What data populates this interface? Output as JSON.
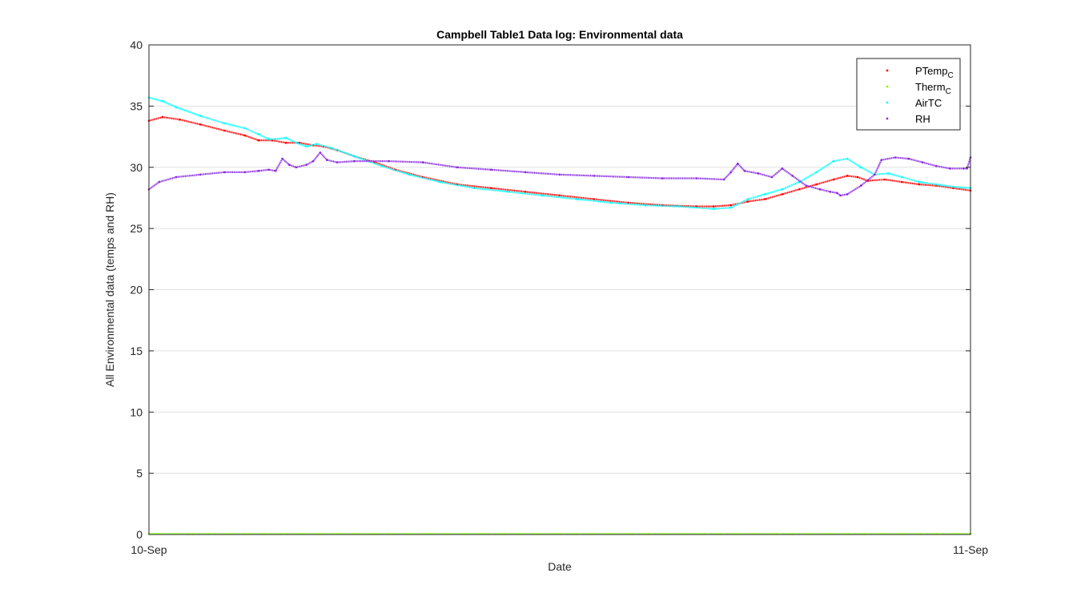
{
  "chart_data": {
    "type": "scatter",
    "title": "Campbell Table1 Data log: Environmental data",
    "xlabel": "Date",
    "ylabel": "All Environmental data (temps and RH)",
    "x_ticks": [
      "10-Sep",
      "11-Sep"
    ],
    "xlim": [
      0,
      24
    ],
    "ylim": [
      0,
      40
    ],
    "y_ticks": [
      0,
      5,
      10,
      15,
      20,
      25,
      30,
      35,
      40
    ],
    "grid": true,
    "legend_position": "top-right",
    "series": [
      {
        "name": "PTemp",
        "subscript": "C",
        "color": "#ff0000",
        "points": [
          [
            0,
            33.8
          ],
          [
            0.4,
            34.1
          ],
          [
            0.9,
            33.9
          ],
          [
            1.5,
            33.5
          ],
          [
            2.2,
            33.0
          ],
          [
            2.8,
            32.6
          ],
          [
            3.2,
            32.2
          ],
          [
            3.6,
            32.2
          ],
          [
            4.0,
            32.0
          ],
          [
            4.4,
            32.0
          ],
          [
            4.8,
            31.8
          ],
          [
            5.1,
            31.7
          ],
          [
            5.5,
            31.4
          ],
          [
            6.0,
            30.9
          ],
          [
            6.6,
            30.4
          ],
          [
            7.2,
            29.8
          ],
          [
            8.0,
            29.2
          ],
          [
            9.0,
            28.6
          ],
          [
            10.0,
            28.3
          ],
          [
            11.0,
            28.0
          ],
          [
            12.0,
            27.7
          ],
          [
            13.0,
            27.4
          ],
          [
            14.0,
            27.1
          ],
          [
            15.0,
            26.9
          ],
          [
            16.0,
            26.8
          ],
          [
            16.5,
            26.8
          ],
          [
            17.0,
            26.9
          ],
          [
            17.5,
            27.2
          ],
          [
            18.0,
            27.4
          ],
          [
            18.5,
            27.8
          ],
          [
            19.0,
            28.2
          ],
          [
            19.5,
            28.6
          ],
          [
            20.0,
            29.0
          ],
          [
            20.4,
            29.3
          ],
          [
            20.7,
            29.2
          ],
          [
            21.0,
            28.9
          ],
          [
            21.5,
            29.0
          ],
          [
            22.0,
            28.8
          ],
          [
            22.5,
            28.6
          ],
          [
            23.0,
            28.5
          ],
          [
            23.5,
            28.3
          ],
          [
            24.0,
            28.1
          ]
        ]
      },
      {
        "name": "Therm",
        "subscript": "C",
        "color": "#7fff00",
        "points": [
          [
            0,
            0.05
          ],
          [
            24,
            0.05
          ]
        ]
      },
      {
        "name": "AirTC",
        "subscript": "",
        "color": "#00ffff",
        "points": [
          [
            0,
            35.7
          ],
          [
            0.4,
            35.4
          ],
          [
            0.8,
            34.9
          ],
          [
            1.5,
            34.2
          ],
          [
            2.2,
            33.6
          ],
          [
            2.8,
            33.2
          ],
          [
            3.2,
            32.7
          ],
          [
            3.5,
            32.3
          ],
          [
            3.7,
            32.3
          ],
          [
            4.0,
            32.4
          ],
          [
            4.3,
            32.0
          ],
          [
            4.6,
            31.7
          ],
          [
            4.9,
            31.9
          ],
          [
            5.3,
            31.6
          ],
          [
            6.0,
            30.9
          ],
          [
            6.8,
            30.1
          ],
          [
            7.6,
            29.4
          ],
          [
            8.5,
            28.8
          ],
          [
            9.5,
            28.3
          ],
          [
            10.5,
            28.0
          ],
          [
            11.5,
            27.7
          ],
          [
            12.5,
            27.4
          ],
          [
            13.5,
            27.1
          ],
          [
            14.5,
            26.9
          ],
          [
            15.5,
            26.8
          ],
          [
            16.5,
            26.6
          ],
          [
            17.0,
            26.7
          ],
          [
            17.5,
            27.4
          ],
          [
            18.0,
            27.8
          ],
          [
            18.5,
            28.2
          ],
          [
            19.0,
            28.8
          ],
          [
            19.5,
            29.6
          ],
          [
            20.0,
            30.5
          ],
          [
            20.4,
            30.7
          ],
          [
            20.8,
            30.0
          ],
          [
            21.2,
            29.4
          ],
          [
            21.6,
            29.5
          ],
          [
            22.0,
            29.2
          ],
          [
            22.5,
            28.8
          ],
          [
            23.0,
            28.6
          ],
          [
            23.5,
            28.4
          ],
          [
            24.0,
            28.3
          ]
        ]
      },
      {
        "name": "RH",
        "subscript": "",
        "color": "#8a2be2",
        "points": [
          [
            0,
            28.2
          ],
          [
            0.3,
            28.8
          ],
          [
            0.8,
            29.2
          ],
          [
            1.5,
            29.4
          ],
          [
            2.2,
            29.6
          ],
          [
            2.8,
            29.6
          ],
          [
            3.2,
            29.7
          ],
          [
            3.5,
            29.8
          ],
          [
            3.7,
            29.7
          ],
          [
            3.9,
            30.7
          ],
          [
            4.1,
            30.2
          ],
          [
            4.3,
            30.0
          ],
          [
            4.6,
            30.2
          ],
          [
            4.8,
            30.5
          ],
          [
            5.0,
            31.2
          ],
          [
            5.2,
            30.6
          ],
          [
            5.5,
            30.4
          ],
          [
            6.0,
            30.5
          ],
          [
            7.0,
            30.5
          ],
          [
            8.0,
            30.4
          ],
          [
            9.0,
            30.0
          ],
          [
            10.0,
            29.8
          ],
          [
            11.0,
            29.6
          ],
          [
            12.0,
            29.4
          ],
          [
            13.0,
            29.3
          ],
          [
            14.0,
            29.2
          ],
          [
            15.0,
            29.1
          ],
          [
            16.0,
            29.1
          ],
          [
            16.8,
            29.0
          ],
          [
            17.0,
            29.6
          ],
          [
            17.2,
            30.3
          ],
          [
            17.4,
            29.7
          ],
          [
            17.8,
            29.5
          ],
          [
            18.2,
            29.2
          ],
          [
            18.5,
            29.9
          ],
          [
            18.8,
            29.3
          ],
          [
            19.2,
            28.5
          ],
          [
            19.6,
            28.2
          ],
          [
            19.9,
            28.0
          ],
          [
            20.1,
            27.9
          ],
          [
            20.2,
            27.7
          ],
          [
            20.4,
            27.8
          ],
          [
            20.8,
            28.5
          ],
          [
            21.2,
            29.4
          ],
          [
            21.4,
            30.6
          ],
          [
            21.8,
            30.8
          ],
          [
            22.2,
            30.7
          ],
          [
            22.6,
            30.4
          ],
          [
            23.0,
            30.1
          ],
          [
            23.4,
            29.9
          ],
          [
            23.8,
            29.9
          ],
          [
            23.9,
            29.9
          ],
          [
            24.0,
            30.8
          ]
        ]
      }
    ]
  }
}
